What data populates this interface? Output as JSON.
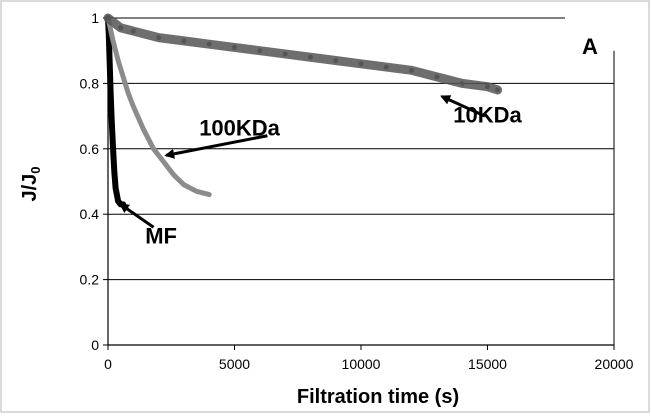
{
  "chart_data": {
    "type": "scatter",
    "panel_label": "A",
    "xlabel": "Filtration time (s)",
    "ylabel": "J/J",
    "ylabel_subscript": "0",
    "xlim": [
      0,
      20000
    ],
    "ylim": [
      0,
      1
    ],
    "x_ticks": [
      0,
      5000,
      10000,
      15000,
      20000
    ],
    "x_tick_labels": [
      "0",
      "5000",
      "10000",
      "15000",
      "20000"
    ],
    "y_ticks": [
      0,
      0.2,
      0.4,
      0.6,
      0.8,
      1
    ],
    "y_tick_labels": [
      "0",
      "0.2",
      "0.4",
      "0.6",
      "0.8",
      "1"
    ],
    "grid": "horizontal",
    "series": [
      {
        "name": "MF",
        "color": "#000000",
        "x": [
          0,
          30,
          60,
          100,
          150,
          200,
          250,
          300,
          400,
          500,
          600
        ],
        "y": [
          1.0,
          0.95,
          0.88,
          0.78,
          0.68,
          0.6,
          0.53,
          0.48,
          0.44,
          0.43,
          0.43
        ]
      },
      {
        "name": "100KDa",
        "color": "#8c8c8c",
        "x": [
          0,
          200,
          400,
          600,
          800,
          1000,
          1400,
          1800,
          2200,
          2600,
          3000,
          3500,
          4000
        ],
        "y": [
          1.0,
          0.93,
          0.87,
          0.82,
          0.77,
          0.73,
          0.66,
          0.6,
          0.56,
          0.52,
          0.49,
          0.47,
          0.46
        ]
      },
      {
        "name": "10KDa",
        "color": "#555555",
        "x": [
          0,
          500,
          1000,
          2000,
          3000,
          4000,
          5000,
          6000,
          7000,
          8000,
          9000,
          10000,
          11000,
          12000,
          13000,
          14000,
          15000,
          15400
        ],
        "y": [
          1.0,
          0.97,
          0.96,
          0.94,
          0.93,
          0.92,
          0.91,
          0.9,
          0.89,
          0.88,
          0.87,
          0.86,
          0.85,
          0.84,
          0.82,
          0.8,
          0.79,
          0.78
        ]
      }
    ],
    "annotations": [
      {
        "text": "MF",
        "x": 2100,
        "y": 0.31,
        "arrow_to": [
          500,
          0.43
        ],
        "arrow_from": [
          1800,
          0.36
        ]
      },
      {
        "text": "100KDa",
        "x": 5200,
        "y": 0.64,
        "arrow_to": [
          2300,
          0.58
        ],
        "arrow_from": [
          6300,
          0.64
        ]
      },
      {
        "text": "10KDa",
        "x": 15000,
        "y": 0.68,
        "arrow_to": [
          13200,
          0.76
        ],
        "arrow_from": [
          14900,
          0.7
        ]
      }
    ]
  }
}
